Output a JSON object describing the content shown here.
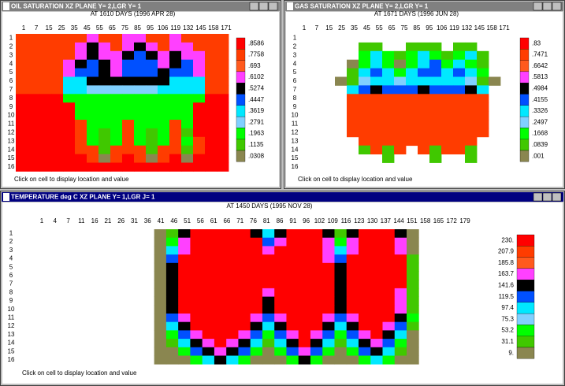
{
  "windows": [
    {
      "title": "OIL SATURATION  XZ PLANE Y= 2,LGR Y= 1",
      "subtitle": "AT 1610 DAYS (1996 APR 28)",
      "columns": [
        1,
        7,
        15,
        25,
        35,
        45,
        55,
        65,
        75,
        85,
        95,
        106,
        119,
        132,
        145,
        158,
        171
      ],
      "rows": [
        1,
        2,
        3,
        4,
        5,
        6,
        7,
        8,
        9,
        10,
        11,
        12,
        13,
        14,
        15,
        16
      ],
      "legend": {
        "values": [
          {
            "value": 0.8586,
            "label": ".8586"
          },
          {
            "value": 0.7758,
            "label": ".7758"
          },
          {
            "value": 0.693,
            "label": ".693"
          },
          {
            "value": 0.6102,
            "label": ".6102"
          },
          {
            "value": 0.5274,
            "label": ".5274"
          },
          {
            "value": 0.4447,
            "label": ".4447"
          },
          {
            "value": 0.3619,
            "label": ".3619"
          },
          {
            "value": 0.2791,
            "label": ".2791"
          },
          {
            "value": 0.1963,
            "label": ".1963"
          },
          {
            "value": 0.1135,
            "label": ".1135"
          },
          {
            "value": 0.0308,
            "label": ".0308"
          }
        ],
        "colors": [
          "#ff0000",
          "#ff3c00",
          "#ff5a1e",
          "#ff40ff",
          "#000000",
          "#0050ff",
          "#00e8ff",
          "#80d0ff",
          "#00ff00",
          "#40c800",
          "#8a8650"
        ]
      },
      "cells": [
        [
          1,
          1,
          1,
          1,
          1,
          1,
          3,
          1,
          1,
          3,
          3,
          1,
          1,
          3,
          1,
          1,
          1,
          1
        ],
        [
          1,
          1,
          1,
          1,
          1,
          3,
          4,
          3,
          1,
          3,
          4,
          3,
          1,
          3,
          3,
          1,
          1,
          1
        ],
        [
          1,
          1,
          1,
          1,
          1,
          3,
          4,
          3,
          3,
          4,
          5,
          4,
          3,
          4,
          3,
          3,
          1,
          1
        ],
        [
          1,
          1,
          1,
          1,
          3,
          4,
          5,
          4,
          3,
          5,
          5,
          5,
          3,
          4,
          5,
          3,
          1,
          1
        ],
        [
          1,
          1,
          1,
          1,
          3,
          5,
          5,
          4,
          3,
          5,
          5,
          5,
          4,
          5,
          5,
          3,
          1,
          1
        ],
        [
          1,
          1,
          1,
          1,
          6,
          6,
          4,
          4,
          4,
          4,
          4,
          4,
          4,
          6,
          6,
          6,
          1,
          1
        ],
        [
          1,
          1,
          1,
          1,
          6,
          6,
          7,
          7,
          7,
          7,
          7,
          7,
          6,
          6,
          6,
          6,
          1,
          1
        ],
        [
          0,
          0,
          0,
          0,
          8,
          8,
          8,
          8,
          8,
          8,
          8,
          8,
          8,
          8,
          8,
          8,
          0,
          0
        ],
        [
          0,
          0,
          0,
          0,
          0,
          8,
          8,
          8,
          8,
          8,
          8,
          8,
          8,
          8,
          8,
          0,
          0,
          0
        ],
        [
          0,
          0,
          0,
          0,
          0,
          8,
          8,
          8,
          8,
          8,
          8,
          8,
          8,
          8,
          8,
          0,
          0,
          0
        ],
        [
          0,
          0,
          0,
          0,
          0,
          1,
          8,
          8,
          8,
          1,
          8,
          8,
          8,
          1,
          8,
          0,
          0,
          0
        ],
        [
          0,
          0,
          0,
          0,
          0,
          1,
          8,
          9,
          8,
          1,
          8,
          9,
          8,
          1,
          9,
          0,
          0,
          0
        ],
        [
          0,
          0,
          0,
          0,
          0,
          1,
          8,
          9,
          8,
          1,
          8,
          9,
          8,
          1,
          8,
          1,
          0,
          0
        ],
        [
          0,
          0,
          0,
          0,
          0,
          1,
          1,
          9,
          1,
          1,
          1,
          9,
          1,
          1,
          9,
          1,
          0,
          0
        ],
        [
          0,
          0,
          0,
          0,
          0,
          0,
          1,
          10,
          1,
          0,
          1,
          10,
          1,
          0,
          10,
          0,
          0,
          0
        ],
        [
          0,
          0,
          0,
          0,
          0,
          0,
          0,
          0,
          0,
          0,
          0,
          0,
          0,
          0,
          0,
          0,
          0,
          0
        ]
      ],
      "status": "Click on cell to display location and value"
    },
    {
      "title": "GAS SATURATION  XZ PLANE Y= 2,LGR Y= 1",
      "subtitle": "AT 1671 DAYS (1996 JUN 28)",
      "columns": [
        1,
        7,
        15,
        25,
        35,
        45,
        55,
        65,
        75,
        85,
        95,
        106,
        119,
        132,
        145,
        158,
        171
      ],
      "rows": [
        1,
        2,
        3,
        4,
        5,
        6,
        7,
        8,
        9,
        10,
        11,
        12,
        13,
        14,
        15,
        16
      ],
      "legend": {
        "values": [
          {
            "value": 0.83,
            "label": ".83"
          },
          {
            "value": 0.7471,
            "label": ".7471"
          },
          {
            "value": 0.6642,
            "label": ".6642"
          },
          {
            "value": 0.5813,
            "label": ".5813"
          },
          {
            "value": 0.4984,
            "label": ".4984"
          },
          {
            "value": 0.4155,
            "label": ".4155"
          },
          {
            "value": 0.3326,
            "label": ".3326"
          },
          {
            "value": 0.2497,
            "label": ".2497"
          },
          {
            "value": 0.1668,
            "label": ".1668"
          },
          {
            "value": 0.0839,
            "label": ".0839"
          },
          {
            "value": 0.001,
            "label": ".001"
          }
        ],
        "colors": [
          "#ff0000",
          "#ff3c00",
          "#ff5a1e",
          "#ff40ff",
          "#000000",
          "#0050ff",
          "#00e8ff",
          "#80d0ff",
          "#00ff00",
          "#40c800",
          "#8a8650"
        ]
      },
      "cells": [
        [
          null,
          null,
          null,
          null,
          null,
          null,
          null,
          null,
          null,
          null,
          null,
          null,
          null,
          null,
          null,
          null,
          null,
          null
        ],
        [
          null,
          null,
          null,
          null,
          null,
          9,
          9,
          null,
          null,
          9,
          9,
          9,
          null,
          9,
          9,
          null,
          null,
          null
        ],
        [
          null,
          null,
          null,
          null,
          null,
          8,
          6,
          8,
          9,
          8,
          6,
          8,
          9,
          8,
          6,
          9,
          null,
          null
        ],
        [
          null,
          null,
          null,
          null,
          10,
          8,
          6,
          8,
          10,
          8,
          6,
          5,
          8,
          6,
          8,
          9,
          null,
          null
        ],
        [
          null,
          null,
          null,
          null,
          9,
          6,
          5,
          6,
          8,
          6,
          5,
          5,
          6,
          5,
          6,
          8,
          null,
          null
        ],
        [
          null,
          null,
          null,
          10,
          9,
          7,
          6,
          6,
          7,
          6,
          6,
          6,
          6,
          6,
          7,
          9,
          10,
          null
        ],
        [
          null,
          null,
          null,
          null,
          6,
          5,
          4,
          5,
          5,
          5,
          4,
          5,
          5,
          5,
          4,
          6,
          null,
          null
        ],
        [
          null,
          null,
          null,
          null,
          1,
          1,
          1,
          1,
          1,
          1,
          1,
          1,
          1,
          1,
          1,
          1,
          null,
          null
        ],
        [
          null,
          null,
          null,
          null,
          1,
          1,
          1,
          1,
          1,
          1,
          1,
          1,
          1,
          1,
          1,
          1,
          null,
          null
        ],
        [
          null,
          null,
          null,
          null,
          1,
          1,
          1,
          1,
          1,
          1,
          1,
          1,
          1,
          1,
          1,
          1,
          null,
          null
        ],
        [
          null,
          null,
          null,
          null,
          1,
          1,
          1,
          1,
          1,
          1,
          1,
          1,
          1,
          1,
          1,
          1,
          null,
          null
        ],
        [
          null,
          null,
          null,
          null,
          1,
          1,
          1,
          1,
          1,
          1,
          1,
          1,
          1,
          1,
          1,
          1,
          null,
          null
        ],
        [
          null,
          null,
          null,
          null,
          null,
          1,
          1,
          1,
          1,
          1,
          1,
          1,
          1,
          1,
          1,
          null,
          null,
          null
        ],
        [
          null,
          null,
          null,
          null,
          null,
          9,
          1,
          9,
          1,
          null,
          1,
          9,
          1,
          1,
          9,
          null,
          null,
          null
        ],
        [
          null,
          null,
          null,
          null,
          null,
          null,
          null,
          9,
          null,
          null,
          null,
          9,
          null,
          null,
          9,
          null,
          null,
          null
        ],
        [
          null,
          null,
          null,
          null,
          null,
          null,
          null,
          null,
          null,
          null,
          null,
          null,
          null,
          null,
          null,
          null,
          null,
          null
        ]
      ],
      "status": "Click on cell to display location and value"
    },
    {
      "title": "TEMPERATURE deg C XZ PLANE Y= 1,LGR J= 1",
      "subtitle": "AT 1450 DAYS (1995 NOV 28)",
      "columns": [
        1,
        4,
        7,
        11,
        16,
        21,
        26,
        31,
        36,
        41,
        46,
        51,
        56,
        61,
        66,
        71,
        76,
        81,
        86,
        91,
        96,
        102,
        109,
        116,
        123,
        130,
        137,
        144,
        151,
        158,
        165,
        172,
        179
      ],
      "rows": [
        1,
        2,
        3,
        4,
        5,
        6,
        7,
        8,
        9,
        10,
        11,
        12,
        13,
        14,
        15,
        16
      ],
      "legend": {
        "values": [
          {
            "value": 230,
            "label": "230."
          },
          207.9,
          185.8,
          163.7,
          141.6,
          119.5,
          97.4,
          75.3,
          53.2,
          31.1,
          {
            "value": 9,
            "label": "9."
          }
        ],
        "colors": [
          "#ff0000",
          "#ff3c00",
          "#ff5a1e",
          "#ff40ff",
          "#000000",
          "#0050ff",
          "#00e8ff",
          "#80d0ff",
          "#00ff00",
          "#40c800",
          "#8a8650"
        ]
      },
      "cells": [
        [
          10,
          9,
          4,
          0,
          0,
          0,
          0,
          0,
          4,
          6,
          4,
          0,
          0,
          0,
          4,
          9,
          4,
          0,
          0,
          0,
          4,
          10
        ],
        [
          10,
          8,
          3,
          0,
          0,
          0,
          0,
          0,
          0,
          5,
          3,
          0,
          0,
          0,
          3,
          8,
          3,
          0,
          0,
          0,
          3,
          10
        ],
        [
          10,
          6,
          3,
          0,
          0,
          0,
          0,
          0,
          0,
          3,
          0,
          0,
          0,
          0,
          3,
          6,
          3,
          0,
          0,
          0,
          3,
          10
        ],
        [
          10,
          5,
          0,
          0,
          0,
          0,
          0,
          0,
          0,
          0,
          0,
          0,
          0,
          0,
          3,
          5,
          0,
          0,
          0,
          0,
          0,
          9
        ],
        [
          10,
          4,
          0,
          0,
          0,
          0,
          0,
          0,
          0,
          0,
          0,
          0,
          0,
          0,
          0,
          4,
          0,
          0,
          0,
          0,
          0,
          9
        ],
        [
          10,
          4,
          0,
          0,
          0,
          0,
          0,
          0,
          0,
          0,
          0,
          0,
          0,
          0,
          0,
          4,
          0,
          0,
          0,
          0,
          0,
          9
        ],
        [
          10,
          4,
          0,
          0,
          0,
          0,
          0,
          0,
          0,
          0,
          0,
          0,
          0,
          0,
          0,
          4,
          0,
          0,
          0,
          0,
          0,
          9
        ],
        [
          10,
          4,
          0,
          0,
          0,
          0,
          0,
          0,
          0,
          3,
          0,
          0,
          0,
          0,
          0,
          4,
          0,
          0,
          0,
          0,
          3,
          9
        ],
        [
          10,
          4,
          0,
          0,
          0,
          0,
          0,
          0,
          0,
          4,
          0,
          0,
          0,
          0,
          0,
          4,
          0,
          0,
          0,
          0,
          3,
          9
        ],
        [
          10,
          4,
          0,
          0,
          0,
          0,
          0,
          0,
          0,
          4,
          0,
          0,
          0,
          0,
          0,
          4,
          0,
          0,
          0,
          0,
          3,
          9
        ],
        [
          10,
          5,
          3,
          0,
          0,
          0,
          0,
          0,
          3,
          5,
          3,
          0,
          0,
          0,
          3,
          5,
          3,
          0,
          0,
          0,
          4,
          8
        ],
        [
          10,
          6,
          4,
          0,
          0,
          0,
          0,
          0,
          4,
          6,
          4,
          0,
          0,
          0,
          4,
          6,
          4,
          0,
          0,
          3,
          5,
          9
        ],
        [
          10,
          8,
          5,
          3,
          0,
          0,
          0,
          3,
          5,
          8,
          5,
          3,
          0,
          3,
          5,
          8,
          5,
          3,
          0,
          4,
          6,
          10
        ],
        [
          10,
          9,
          6,
          4,
          3,
          0,
          3,
          4,
          6,
          9,
          6,
          4,
          0,
          4,
          6,
          9,
          6,
          4,
          3,
          5,
          8,
          10
        ],
        [
          10,
          10,
          8,
          5,
          4,
          3,
          4,
          5,
          8,
          10,
          8,
          5,
          3,
          5,
          8,
          10,
          8,
          5,
          4,
          6,
          9,
          10
        ],
        [
          10,
          10,
          10,
          8,
          6,
          4,
          6,
          8,
          10,
          10,
          10,
          8,
          4,
          8,
          10,
          10,
          10,
          8,
          6,
          8,
          10,
          10
        ]
      ],
      "status": "Click on cell to display location and value"
    }
  ]
}
